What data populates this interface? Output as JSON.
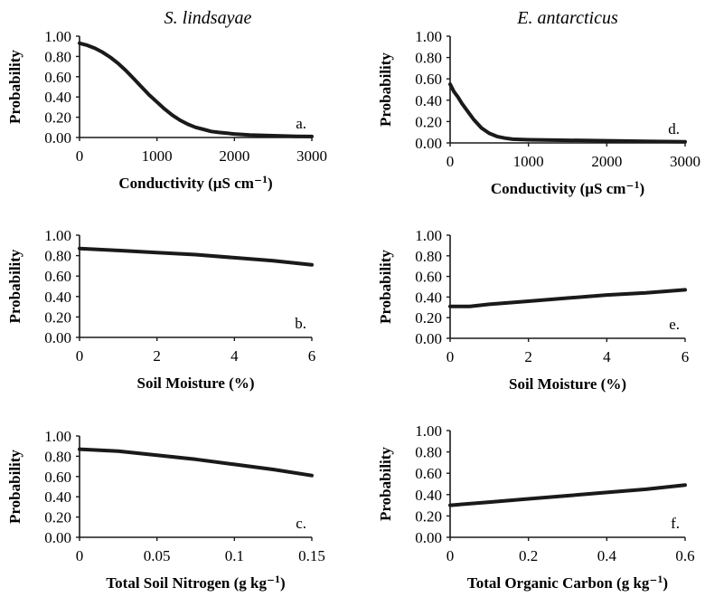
{
  "column_titles": [
    "S. lindsayae",
    "E. antarcticus"
  ],
  "chart_data": [
    {
      "id": "a",
      "type": "line",
      "panel_label": "a.",
      "ylabel": "Probability",
      "xlabel": "Conductivity (µS cm⁻¹)",
      "xlim": [
        0,
        3000
      ],
      "ylim": [
        0,
        1
      ],
      "xticks": [
        "0",
        "1000",
        "2000",
        "3000"
      ],
      "xtick_values": [
        0,
        1000,
        2000,
        3000
      ],
      "yticks": [
        "0.00",
        "0.20",
        "0.40",
        "0.60",
        "0.80",
        "1.00"
      ],
      "ytick_values": [
        0,
        0.2,
        0.4,
        0.6,
        0.8,
        1.0
      ],
      "x": [
        0,
        100,
        200,
        300,
        400,
        500,
        600,
        700,
        800,
        900,
        1000,
        1100,
        1200,
        1300,
        1400,
        1500,
        1600,
        1700,
        1800,
        2000,
        2200,
        2400,
        2600,
        2800,
        3000
      ],
      "y": [
        0.93,
        0.91,
        0.88,
        0.84,
        0.79,
        0.73,
        0.66,
        0.58,
        0.5,
        0.42,
        0.35,
        0.28,
        0.22,
        0.17,
        0.13,
        0.1,
        0.08,
        0.06,
        0.05,
        0.035,
        0.025,
        0.02,
        0.015,
        0.012,
        0.01
      ]
    },
    {
      "id": "b",
      "type": "line",
      "panel_label": "b.",
      "ylabel": "Probability",
      "xlabel": "Soil Moisture (%)",
      "xlim": [
        0,
        6
      ],
      "ylim": [
        0,
        1
      ],
      "xticks": [
        "0",
        "2",
        "4",
        "6"
      ],
      "xtick_values": [
        0,
        2,
        4,
        6
      ],
      "yticks": [
        "0.00",
        "0.20",
        "0.40",
        "0.60",
        "0.80",
        "1.00"
      ],
      "ytick_values": [
        0,
        0.2,
        0.4,
        0.6,
        0.8,
        1.0
      ],
      "x": [
        0,
        1,
        2,
        3,
        4,
        5,
        6
      ],
      "y": [
        0.87,
        0.85,
        0.83,
        0.81,
        0.78,
        0.75,
        0.71
      ]
    },
    {
      "id": "c",
      "type": "line",
      "panel_label": "c.",
      "ylabel": "Probability",
      "xlabel": "Total Soil Nitrogen (g kg⁻¹)",
      "xlim": [
        0,
        0.15
      ],
      "ylim": [
        0,
        1
      ],
      "xticks": [
        "0",
        "0.05",
        "0.1",
        "0.15"
      ],
      "xtick_values": [
        0,
        0.05,
        0.1,
        0.15
      ],
      "yticks": [
        "0.00",
        "0.20",
        "0.40",
        "0.60",
        "0.80",
        "1.00"
      ],
      "ytick_values": [
        0,
        0.2,
        0.4,
        0.6,
        0.8,
        1.0
      ],
      "x": [
        0,
        0.025,
        0.05,
        0.075,
        0.1,
        0.125,
        0.15
      ],
      "y": [
        0.87,
        0.85,
        0.81,
        0.77,
        0.72,
        0.67,
        0.61
      ]
    },
    {
      "id": "d",
      "type": "line",
      "panel_label": "d.",
      "ylabel": "Probability",
      "xlabel": "Conductivity (µS cm⁻¹)",
      "xlim": [
        0,
        3000
      ],
      "ylim": [
        0,
        1
      ],
      "xticks": [
        "0",
        "1000",
        "2000",
        "3000"
      ],
      "xtick_values": [
        0,
        1000,
        2000,
        3000
      ],
      "yticks": [
        "0.00",
        "0.20",
        "0.40",
        "0.60",
        "0.80",
        "1.00"
      ],
      "ytick_values": [
        0,
        0.2,
        0.4,
        0.6,
        0.8,
        1.0
      ],
      "x": [
        0,
        50,
        100,
        150,
        200,
        300,
        400,
        500,
        600,
        700,
        800,
        1000,
        1500,
        2000,
        2500,
        3000
      ],
      "y": [
        0.55,
        0.48,
        0.43,
        0.37,
        0.32,
        0.22,
        0.14,
        0.09,
        0.06,
        0.045,
        0.035,
        0.03,
        0.025,
        0.02,
        0.015,
        0.01
      ]
    },
    {
      "id": "e",
      "type": "line",
      "panel_label": "e.",
      "ylabel": "Probability",
      "xlabel": "Soil Moisture (%)",
      "xlim": [
        0,
        6
      ],
      "ylim": [
        0,
        1
      ],
      "xticks": [
        "0",
        "2",
        "4",
        "6"
      ],
      "xtick_values": [
        0,
        2,
        4,
        6
      ],
      "yticks": [
        "0.00",
        "0.20",
        "0.40",
        "0.60",
        "0.80",
        "1.00"
      ],
      "ytick_values": [
        0,
        0.2,
        0.4,
        0.6,
        0.8,
        1.0
      ],
      "x": [
        0,
        0.5,
        1,
        2,
        3,
        4,
        5,
        6
      ],
      "y": [
        0.31,
        0.31,
        0.33,
        0.36,
        0.39,
        0.42,
        0.44,
        0.47
      ]
    },
    {
      "id": "f",
      "type": "line",
      "panel_label": "f.",
      "ylabel": "Probability",
      "xlabel": "Total Organic Carbon (g kg⁻¹)",
      "xlim": [
        0,
        0.6
      ],
      "ylim": [
        0,
        1
      ],
      "xticks": [
        "0",
        "0.2",
        "0.4",
        "0.6"
      ],
      "xtick_values": [
        0,
        0.2,
        0.4,
        0.6
      ],
      "yticks": [
        "0.00",
        "0.20",
        "0.40",
        "0.60",
        "0.80",
        "1.00"
      ],
      "ytick_values": [
        0,
        0.2,
        0.4,
        0.6,
        0.8,
        1.0
      ],
      "x": [
        0,
        0.1,
        0.2,
        0.3,
        0.4,
        0.5,
        0.6
      ],
      "y": [
        0.3,
        0.33,
        0.36,
        0.39,
        0.42,
        0.45,
        0.49
      ]
    }
  ]
}
